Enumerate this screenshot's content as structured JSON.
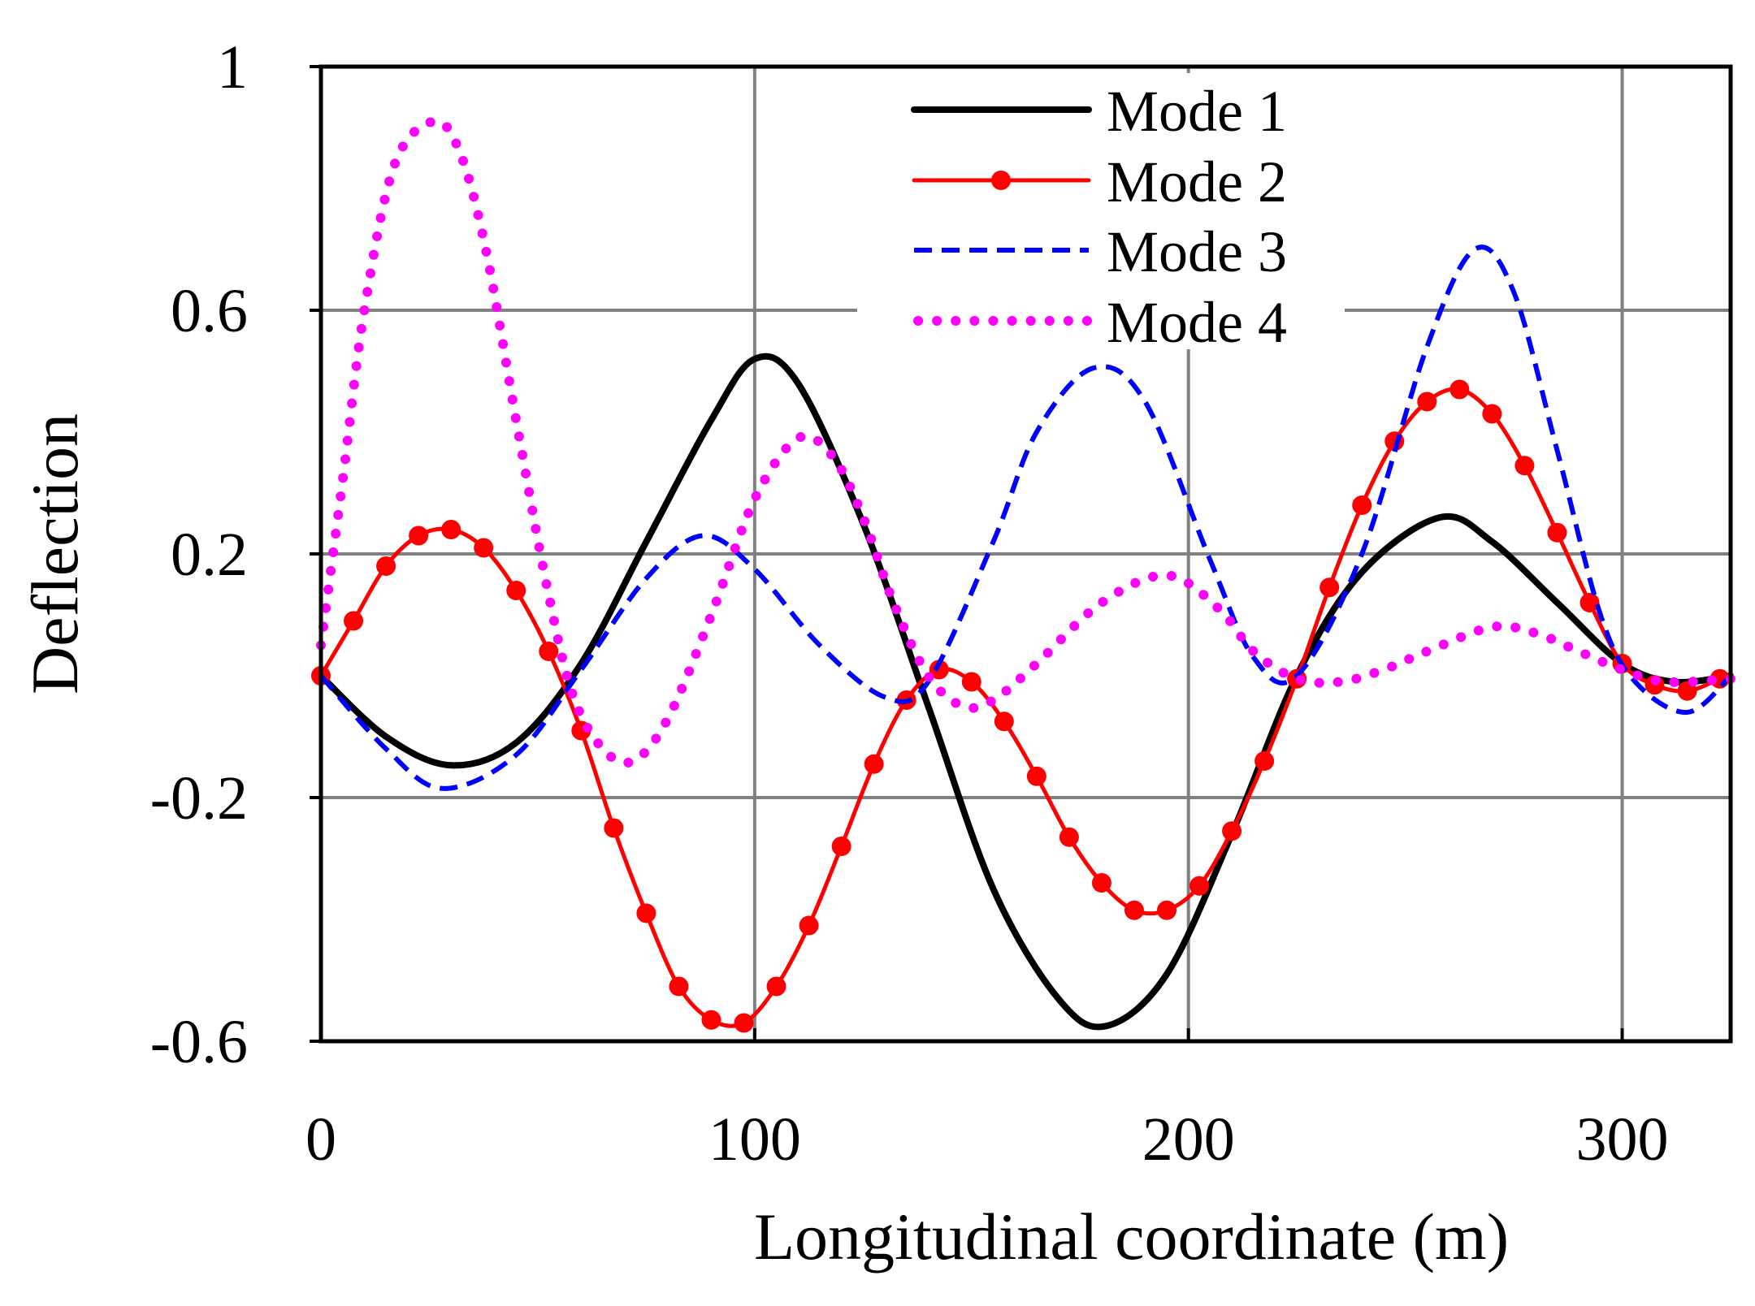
{
  "chart_data": {
    "type": "line",
    "title": "",
    "xlabel": "Longitudinal coordinate (m)",
    "ylabel": "Deflection",
    "xlim": [
      0,
      325
    ],
    "ylim": [
      -0.6,
      1.0
    ],
    "xticks": [
      0,
      100,
      200,
      300
    ],
    "xtick_labels": [
      "0",
      "100",
      "200",
      "300"
    ],
    "yticks": [
      -0.6,
      -0.2,
      0.2,
      0.6,
      1.0
    ],
    "ytick_labels": [
      "-0.6",
      "-0.2",
      "0.2",
      "0.6",
      "1"
    ],
    "grid": true,
    "legend_position": "top-center",
    "series": [
      {
        "name": "Mode 1",
        "color": "#000000",
        "style": "solid",
        "x": [
          0,
          15,
          30,
          45,
          60,
          75,
          90,
          100,
          110,
          125,
          140,
          155,
          170,
          181,
          195,
          210,
          225,
          240,
          258,
          270,
          285,
          300,
          312,
          325
        ],
        "y": [
          0,
          -0.1,
          -0.147,
          -0.11,
          0.02,
          0.22,
          0.42,
          0.52,
          0.48,
          0.25,
          -0.05,
          -0.35,
          -0.53,
          -0.575,
          -0.49,
          -0.26,
          0.0,
          0.17,
          0.26,
          0.22,
          0.12,
          0.02,
          -0.01,
          0.0
        ]
      },
      {
        "name": "Mode 2",
        "color": "#ff0000",
        "style": "solid-markers",
        "x": [
          0,
          7.5,
          15,
          22.5,
          30,
          37.5,
          45,
          52.5,
          60,
          67.5,
          75,
          82.5,
          90,
          97.5,
          105,
          112.5,
          120,
          127.5,
          135,
          142.5,
          150,
          157.5,
          165,
          172.5,
          180,
          187.5,
          195,
          202.5,
          210,
          217.5,
          225,
          232.5,
          240,
          247.5,
          255,
          262.5,
          270,
          277.5,
          285,
          292.5,
          300,
          307.5,
          315,
          322.5
        ],
        "y": [
          0,
          0.09,
          0.18,
          0.23,
          0.24,
          0.21,
          0.14,
          0.04,
          -0.09,
          -0.25,
          -0.39,
          -0.51,
          -0.565,
          -0.57,
          -0.51,
          -0.41,
          -0.28,
          -0.145,
          -0.04,
          0.01,
          -0.01,
          -0.075,
          -0.165,
          -0.265,
          -0.34,
          -0.385,
          -0.385,
          -0.345,
          -0.255,
          -0.14,
          -0.005,
          0.145,
          0.28,
          0.385,
          0.45,
          0.47,
          0.43,
          0.345,
          0.235,
          0.12,
          0.02,
          -0.015,
          -0.025,
          -0.005
        ]
      },
      {
        "name": "Mode 3",
        "color": "#0000ff",
        "style": "dashed",
        "x": [
          0,
          15,
          28,
          45,
          60,
          75,
          88,
          100,
          115,
          130,
          140,
          155,
          165,
          178,
          190,
          205,
          215,
          225,
          240,
          255,
          266,
          275,
          285,
          295,
          303,
          315,
          325
        ],
        "y": [
          0,
          -0.12,
          -0.185,
          -0.13,
          0.01,
          0.16,
          0.23,
          0.175,
          0.05,
          -0.035,
          -0.01,
          0.22,
          0.4,
          0.505,
          0.45,
          0.19,
          0.03,
          0.0,
          0.2,
          0.54,
          0.7,
          0.63,
          0.37,
          0.1,
          -0.01,
          -0.06,
          0.0
        ]
      },
      {
        "name": "Mode 4",
        "color": "#ff00ff",
        "style": "dotted",
        "x": [
          0,
          5,
          10,
          17,
          26,
          32,
          38,
          45,
          52,
          58,
          65,
          72,
          80,
          90,
          100,
          110,
          118,
          125,
          132,
          140,
          148,
          155,
          165,
          180,
          195,
          207,
          215,
          225,
          235,
          245,
          255,
          270,
          280,
          290,
          300,
          310,
          325
        ],
        "y": [
          0.05,
          0.32,
          0.6,
          0.84,
          0.91,
          0.86,
          0.7,
          0.42,
          0.15,
          -0.03,
          -0.12,
          -0.14,
          -0.07,
          0.1,
          0.29,
          0.39,
          0.36,
          0.26,
          0.12,
          0.0,
          -0.05,
          -0.04,
          0.02,
          0.12,
          0.165,
          0.11,
          0.04,
          -0.005,
          -0.01,
          0.01,
          0.04,
          0.08,
          0.07,
          0.04,
          0.01,
          -0.01,
          -0.005
        ]
      }
    ]
  }
}
